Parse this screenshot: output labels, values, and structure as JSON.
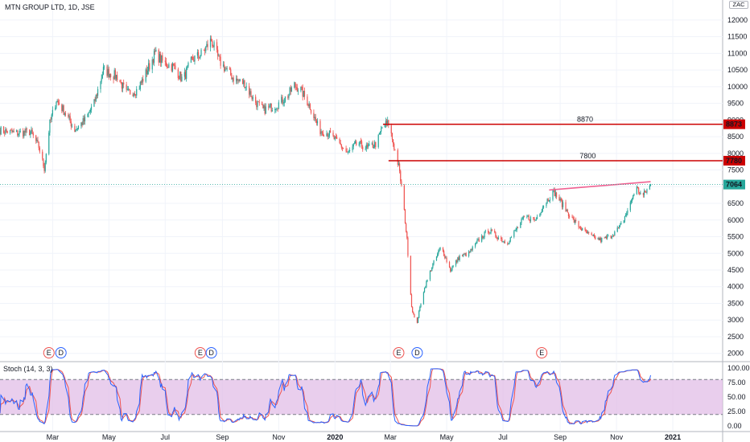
{
  "header": {
    "title": "MTN GROUP LTD, 1D, JSE",
    "currency": "ZAC"
  },
  "indicator": {
    "label": "Stoch (14, 3, 3)"
  },
  "colors": {
    "up": "#26a69a",
    "down": "#ef5350",
    "resistance": "#cc0000",
    "trendline": "#f06292",
    "stoch_k": "#2962ff",
    "stoch_d": "#ef5350",
    "stoch_band": "#e1bee7"
  },
  "chart_data": [
    {
      "type": "candlestick",
      "title": "MTN GROUP LTD, 1D, JSE",
      "y_ticks": [
        2000,
        2500,
        3000,
        3500,
        4000,
        4500,
        5000,
        5500,
        6000,
        6500,
        7000,
        7500,
        8000,
        8500,
        9000,
        9500,
        10000,
        10500,
        11000,
        11500,
        12000
      ],
      "y_tick_labels": [
        "2000",
        "2500",
        "3000",
        "3500",
        "4000",
        "4500",
        "5000",
        "5500",
        "6000",
        "6500",
        "7000",
        "7500",
        "8000",
        "8500",
        "9000",
        "9500",
        "10000",
        "10500",
        "11000",
        "11500",
        "12000"
      ],
      "x_ticks": [
        {
          "label": "Mar",
          "date": "2019-03-01"
        },
        {
          "label": "May",
          "date": "2019-05-01"
        },
        {
          "label": "Jul",
          "date": "2019-07-01"
        },
        {
          "label": "Sep",
          "date": "2019-09-01"
        },
        {
          "label": "Nov",
          "date": "2019-11-01"
        },
        {
          "label": "2020",
          "date": "2020-01-01"
        },
        {
          "label": "Mar",
          "date": "2020-03-01"
        },
        {
          "label": "May",
          "date": "2020-05-01"
        },
        {
          "label": "Jul",
          "date": "2020-07-01"
        },
        {
          "label": "Sep",
          "date": "2020-09-01"
        },
        {
          "label": "Nov",
          "date": "2020-11-01"
        },
        {
          "label": "2021",
          "date": "2021-01-01"
        }
      ],
      "x_range": [
        "2019-01-03",
        "2021-02-24"
      ],
      "ylim": [
        1800,
        12600
      ],
      "price_path": [
        [
          "2019-01-03",
          8700
        ],
        [
          "2019-01-20",
          8600
        ],
        [
          "2019-02-05",
          8650
        ],
        [
          "2019-02-14",
          8200
        ],
        [
          "2019-02-20",
          7550
        ],
        [
          "2019-02-26",
          8900
        ],
        [
          "2019-03-05",
          9600
        ],
        [
          "2019-03-15",
          9200
        ],
        [
          "2019-03-25",
          8700
        ],
        [
          "2019-04-05",
          9000
        ],
        [
          "2019-04-15",
          9500
        ],
        [
          "2019-04-25",
          10500
        ],
        [
          "2019-05-10",
          10300
        ],
        [
          "2019-05-20",
          9800
        ],
        [
          "2019-06-01",
          9900
        ],
        [
          "2019-06-10",
          10400
        ],
        [
          "2019-06-20",
          11000
        ],
        [
          "2019-06-30",
          10700
        ],
        [
          "2019-07-10",
          10600
        ],
        [
          "2019-07-20",
          10200
        ],
        [
          "2019-07-30",
          10800
        ],
        [
          "2019-08-10",
          11000
        ],
        [
          "2019-08-20",
          11400
        ],
        [
          "2019-08-28",
          10800
        ],
        [
          "2019-09-05",
          10500
        ],
        [
          "2019-09-15",
          10200
        ],
        [
          "2019-09-25",
          10100
        ],
        [
          "2019-10-05",
          9600
        ],
        [
          "2019-10-15",
          9300
        ],
        [
          "2019-10-25",
          9400
        ],
        [
          "2019-11-01",
          9500
        ],
        [
          "2019-11-10",
          9700
        ],
        [
          "2019-11-18",
          10050
        ],
        [
          "2019-11-25",
          9900
        ],
        [
          "2019-12-05",
          9400
        ],
        [
          "2019-12-15",
          8700
        ],
        [
          "2019-12-25",
          8600
        ],
        [
          "2020-01-05",
          8300
        ],
        [
          "2020-01-15",
          8000
        ],
        [
          "2020-01-25",
          8300
        ],
        [
          "2020-02-05",
          8150
        ],
        [
          "2020-02-15",
          8300
        ],
        [
          "2020-02-22",
          8850
        ],
        [
          "2020-02-28",
          8900
        ],
        [
          "2020-03-05",
          8200
        ],
        [
          "2020-03-10",
          7600
        ],
        [
          "2020-03-14",
          6800
        ],
        [
          "2020-03-19",
          5400
        ],
        [
          "2020-03-24",
          3400
        ],
        [
          "2020-03-29",
          2800
        ],
        [
          "2020-04-05",
          3800
        ],
        [
          "2020-04-15",
          4600
        ],
        [
          "2020-04-25",
          5200
        ],
        [
          "2020-05-05",
          4500
        ],
        [
          "2020-05-15",
          4900
        ],
        [
          "2020-05-25",
          5000
        ],
        [
          "2020-06-05",
          5400
        ],
        [
          "2020-06-15",
          5700
        ],
        [
          "2020-06-25",
          5500
        ],
        [
          "2020-07-05",
          5300
        ],
        [
          "2020-07-15",
          5700
        ],
        [
          "2020-07-25",
          6100
        ],
        [
          "2020-08-05",
          6000
        ],
        [
          "2020-08-15",
          6500
        ],
        [
          "2020-08-25",
          6850
        ],
        [
          "2020-09-05",
          6400
        ],
        [
          "2020-09-15",
          6000
        ],
        [
          "2020-09-25",
          5700
        ],
        [
          "2020-10-05",
          5500
        ],
        [
          "2020-10-15",
          5400
        ],
        [
          "2020-10-25",
          5500
        ],
        [
          "2020-11-05",
          5800
        ],
        [
          "2020-11-15",
          6400
        ],
        [
          "2020-11-22",
          7000
        ],
        [
          "2020-11-29",
          6700
        ],
        [
          "2020-12-08",
          7064
        ]
      ],
      "horizontal_levels": [
        {
          "value": 8873,
          "label": "8870",
          "price_label": "8873",
          "start": "2020-02-22"
        },
        {
          "value": 7780,
          "label": "7800",
          "price_label": "7780",
          "start": "2020-02-28"
        }
      ],
      "trendline": {
        "from": [
          "2020-08-20",
          6900
        ],
        "to": [
          "2020-12-08",
          7150
        ]
      },
      "last_price": {
        "value": 7064,
        "label": "7064"
      },
      "events": [
        {
          "type": "E",
          "date": "2019-02-25"
        },
        {
          "type": "D",
          "date": "2019-03-10"
        },
        {
          "type": "E",
          "date": "2019-08-08"
        },
        {
          "type": "D",
          "date": "2019-08-20"
        },
        {
          "type": "E",
          "date": "2020-03-10"
        },
        {
          "type": "D",
          "date": "2020-03-30"
        },
        {
          "type": "E",
          "date": "2020-08-12"
        }
      ]
    },
    {
      "type": "line",
      "title": "Stoch (14, 3, 3)",
      "y_ticks": [
        0,
        25,
        50,
        75,
        100
      ],
      "y_tick_labels": [
        "0.00",
        "25.00",
        "50.00",
        "75.00",
        "100.00"
      ],
      "ylim": [
        -8,
        108
      ],
      "bands": {
        "upper": 80,
        "lower": 20
      },
      "series": [
        {
          "name": "K",
          "color": "#2962ff"
        },
        {
          "name": "D",
          "color": "#ef5350"
        }
      ]
    }
  ]
}
